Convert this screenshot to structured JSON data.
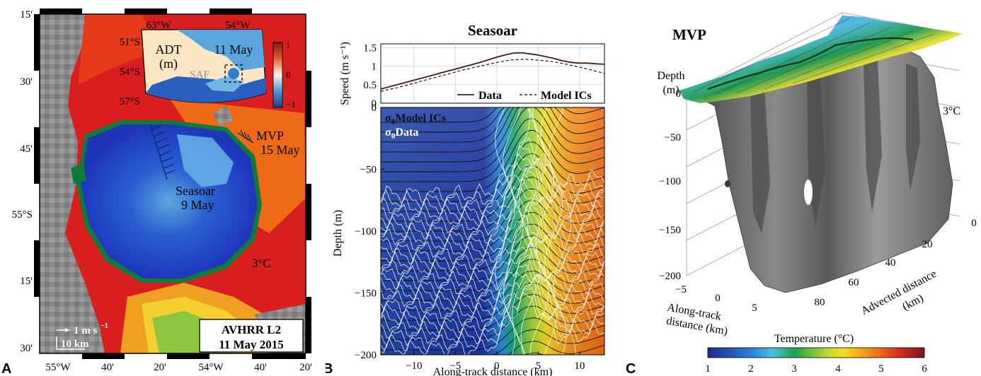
{
  "panel_a": {
    "letter": "A",
    "lat_labels": [
      "15'",
      "30'",
      "45'",
      "55°S",
      "15'",
      "30'"
    ],
    "lon_labels": [
      "55°W",
      "40'",
      "20'",
      "54°W",
      "40'",
      "20'"
    ],
    "ship_tracks": [
      {
        "name": "Seasoar",
        "date": "9 May"
      },
      {
        "name": "MVP",
        "date": "15 May"
      }
    ],
    "isotherm_label": "3°C",
    "scale_vector": "1 m s",
    "scale_vector_exp": "−1",
    "scale_bar": "10 km",
    "product": "AVHRR L2",
    "product_date": "11 May 2015",
    "inset": {
      "title_line1": "ADT",
      "title_line2": "(m)",
      "date": "11 May",
      "front_label": "SAF",
      "lon_labels": [
        "63°W",
        "54°W"
      ],
      "lat_labels": [
        "51°S",
        "54°S",
        "57°S"
      ],
      "colorbar_ticks": [
        "1",
        "0",
        "−1"
      ]
    }
  },
  "chart_data": [
    {
      "panel": "B-top",
      "type": "line",
      "title": "Seasoar",
      "ylabel": "Speed (m s⁻¹)",
      "xlim": [
        -14,
        13
      ],
      "ylim": [
        0,
        1.6
      ],
      "yticks": [
        0.5,
        1,
        1.5
      ],
      "series": [
        {
          "name": "Data",
          "style": "solid",
          "x": [
            -14,
            -12,
            -10,
            -8,
            -6,
            -4,
            -2,
            0,
            1,
            2,
            3,
            4,
            5,
            6,
            7,
            8,
            9,
            10,
            11,
            12,
            13
          ],
          "y": [
            0.38,
            0.5,
            0.62,
            0.74,
            0.86,
            0.98,
            1.1,
            1.24,
            1.3,
            1.35,
            1.36,
            1.33,
            1.3,
            1.25,
            1.2,
            1.14,
            1.1,
            1.08,
            1.08,
            1.06,
            1.05
          ]
        },
        {
          "name": "Model ICs",
          "style": "dashed",
          "x": [
            -14,
            -12,
            -10,
            -8,
            -6,
            -4,
            -2,
            0,
            1,
            2,
            3,
            4,
            5,
            6,
            7,
            8,
            9,
            10,
            11,
            12,
            13
          ],
          "y": [
            0.32,
            0.42,
            0.54,
            0.66,
            0.78,
            0.9,
            1.0,
            1.1,
            1.14,
            1.17,
            1.18,
            1.18,
            1.16,
            1.14,
            1.11,
            1.07,
            1.02,
            0.97,
            0.92,
            0.86,
            0.8
          ]
        }
      ]
    },
    {
      "panel": "B-bottom",
      "type": "heatmap",
      "xlabel": "Along-track distance (km)",
      "ylabel": "Depth (m)",
      "xlim": [
        -14,
        13
      ],
      "ylim": [
        -200,
        0
      ],
      "xticks": [
        -10,
        -5,
        0,
        5,
        10
      ],
      "yticks": [
        0,
        -50,
        -100,
        -150,
        -200
      ],
      "legend": [
        "σθ Model ICs",
        "σθ Data"
      ]
    },
    {
      "panel": "C",
      "type": "other",
      "title": "MVP",
      "zlabel": "Depth (m)",
      "xlabel": "Along-track distance (km)",
      "ylabel": "Advected distance (km)",
      "zticks": [
        0,
        -50,
        -100,
        -150,
        -200
      ],
      "xticks": [
        -5,
        0,
        5
      ],
      "yticks": [
        0,
        20,
        40,
        60,
        80
      ],
      "isosurface_label": "3°C",
      "colorbar_label": "Temperature (°C)",
      "colorbar_ticks": [
        1,
        2,
        3,
        4,
        5,
        6
      ]
    }
  ],
  "panel_b": {
    "letter": "B",
    "speed_tick_labels": [
      "1.5",
      "1",
      "0.5",
      "0"
    ],
    "depth_tick_labels": [
      "0",
      "−50",
      "−100",
      "−150",
      "−200"
    ],
    "x_tick_labels": [
      "−10",
      "−5",
      "0",
      "5",
      "10"
    ],
    "legend_data": "Data",
    "legend_model": "Model ICs",
    "sigma_model": "Model ICs",
    "sigma_data": "Data",
    "sigma_symbol": "σ",
    "sigma_sub": "θ"
  },
  "panel_c": {
    "letter": "C",
    "depth_tick_labels": [
      "0",
      "−50",
      "−100",
      "−150",
      "−200"
    ],
    "along_tick_labels": [
      "−5",
      "0",
      "5"
    ],
    "advected_tick_labels": [
      "0",
      "20",
      "40",
      "60",
      "80"
    ],
    "colorbar_tick_labels": [
      "1",
      "2",
      "3",
      "4",
      "5",
      "6"
    ],
    "along_label_line1": "Along-track",
    "along_label_line2": "distance (km)",
    "advected_label_line1": "Advected distance",
    "advected_label_line2": "(km)",
    "depth_label_line1": "Depth",
    "depth_label_line2": "(m)"
  }
}
